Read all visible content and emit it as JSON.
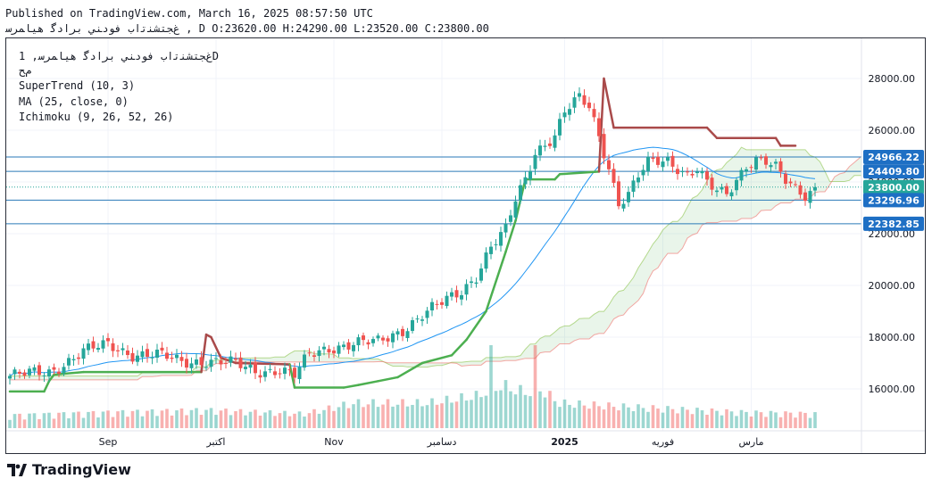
{
  "header": {
    "published": "Published on TradingView.com, March 16, 2025 08:57:50 UTC",
    "symbol_line": "ﻍﺠﺘﺸﻨﺗﺍﺏ ﻓﻮﺩﻨﻲ ﺑﺮﺍﺩﮔ ﻫﻴﺎﻤﺮﺳ , D O:23620.00 H:24290.00 L:23520.00 C:23800.00"
  },
  "legend": {
    "title": "ﻍﺠﺘﺸﻨﺗﺍﺏ ﻓﻮﺩﻨﻲ ﺑﺮﺍﺩﮔ ﻫﻴﺎﻤﺮﺳ, 1D",
    "subtitle": "ﻡﺢ",
    "indicators": [
      "SuperTrend (10, 3)",
      "MA (25, close, 0)",
      "Ichimoku (9, 26, 52, 26)"
    ]
  },
  "footer": {
    "brand": "TradingView"
  },
  "colors": {
    "up": "#26a69a",
    "down": "#ef5350",
    "supertrend_up": "#4caf50",
    "supertrend_down": "#a94a4a",
    "ma": "#2196f3",
    "hline": "#2a7ab8",
    "badge": "#1e6fc4"
  },
  "chart_data": {
    "type": "candlestick",
    "y_axis": {
      "ticks": [
        16000,
        18000,
        20000,
        22000,
        24000,
        26000,
        28000
      ],
      "tick_labels": [
        "16000.00",
        "18000.00",
        "20000.00",
        "22000.00",
        "24000.00",
        "26000.00",
        "28000.00"
      ],
      "range": [
        15400,
        28600
      ]
    },
    "x_axis": {
      "labels": [
        {
          "bar": 20,
          "text": "Sep"
        },
        {
          "bar": 42,
          "text": "اکتبر"
        },
        {
          "bar": 66,
          "text": "Nov"
        },
        {
          "bar": 88,
          "text": "دسامبر"
        },
        {
          "bar": 113,
          "text": "2025"
        },
        {
          "bar": 133,
          "text": "فوریه"
        },
        {
          "bar": 151,
          "text": "مارس"
        }
      ],
      "bars": 165
    },
    "hlines": [
      24966.22,
      24409.8,
      23296.96,
      22382.85
    ],
    "price_labels": [
      {
        "value": 24966.22,
        "text": "24966.22",
        "style": "outline"
      },
      {
        "value": 24409.8,
        "text": "24409.80",
        "style": "outline"
      },
      {
        "value": 23800,
        "text": "23800.00",
        "style": "green"
      },
      {
        "value": 23296.96,
        "text": "23296.96",
        "style": "outline"
      },
      {
        "value": 22382.85,
        "text": "22382.85",
        "style": "outline"
      }
    ],
    "last_close": 23800,
    "keypoints": [
      [
        0,
        16500
      ],
      [
        8,
        16650
      ],
      [
        15,
        17450
      ],
      [
        20,
        17700
      ],
      [
        25,
        17350
      ],
      [
        30,
        17300
      ],
      [
        35,
        17050
      ],
      [
        40,
        17100
      ],
      [
        46,
        16950
      ],
      [
        50,
        16700
      ],
      [
        55,
        16750
      ],
      [
        58,
        16500
      ],
      [
        61,
        17300
      ],
      [
        65,
        17600
      ],
      [
        70,
        17750
      ],
      [
        75,
        17800
      ],
      [
        80,
        18300
      ],
      [
        84,
        18850
      ],
      [
        88,
        19300
      ],
      [
        92,
        19800
      ],
      [
        95,
        20400
      ],
      [
        98,
        21500
      ],
      [
        101,
        22100
      ],
      [
        103,
        23300
      ],
      [
        105,
        24100
      ],
      [
        107,
        25200
      ],
      [
        109,
        25500
      ],
      [
        111,
        25800
      ],
      [
        113,
        26700
      ],
      [
        116,
        27200
      ],
      [
        118,
        26900
      ],
      [
        120,
        25800
      ],
      [
        122,
        24600
      ],
      [
        124,
        23200
      ],
      [
        126,
        23500
      ],
      [
        128,
        24200
      ],
      [
        130,
        24700
      ],
      [
        132,
        24800
      ],
      [
        134,
        24850
      ],
      [
        136,
        24600
      ],
      [
        138,
        24300
      ],
      [
        140,
        24500
      ],
      [
        142,
        23900
      ],
      [
        144,
        23600
      ],
      [
        146,
        23500
      ],
      [
        148,
        24100
      ],
      [
        150,
        24700
      ],
      [
        152,
        24900
      ],
      [
        154,
        24800
      ],
      [
        156,
        24500
      ],
      [
        158,
        24000
      ],
      [
        160,
        23700
      ],
      [
        162,
        23500
      ],
      [
        164,
        23800
      ]
    ],
    "supertrend_keypoints": [
      [
        0,
        15900,
        "up"
      ],
      [
        7,
        15900,
        "up"
      ],
      [
        8,
        16300,
        "up"
      ],
      [
        9,
        16550,
        "up"
      ],
      [
        15,
        16650,
        "up"
      ],
      [
        39,
        16650,
        "up"
      ],
      [
        40,
        18100,
        "down"
      ],
      [
        41,
        18000,
        "down"
      ],
      [
        43,
        17200,
        "down"
      ],
      [
        46,
        17000,
        "down"
      ],
      [
        57,
        16950,
        "down"
      ],
      [
        58,
        16050,
        "up"
      ],
      [
        68,
        16050,
        "up"
      ],
      [
        71,
        16150,
        "up"
      ],
      [
        75,
        16300,
        "up"
      ],
      [
        79,
        16450,
        "up"
      ],
      [
        84,
        17000,
        "up"
      ],
      [
        90,
        17300,
        "up"
      ],
      [
        93,
        17900,
        "up"
      ],
      [
        97,
        19000,
        "up"
      ],
      [
        101,
        21300,
        "up"
      ],
      [
        103,
        22500,
        "up"
      ],
      [
        105,
        24100,
        "up"
      ],
      [
        111,
        24100,
        "up"
      ],
      [
        112,
        24300,
        "up"
      ],
      [
        120,
        24400,
        "up"
      ],
      [
        121,
        28000,
        "down"
      ],
      [
        123,
        26100,
        "down"
      ],
      [
        142,
        26100,
        "down"
      ],
      [
        144,
        25700,
        "down"
      ],
      [
        156,
        25700,
        "down"
      ],
      [
        157,
        25400,
        "down"
      ],
      [
        160,
        25400,
        "down"
      ]
    ],
    "volume_keypoints": [
      [
        0,
        0.18
      ],
      [
        20,
        0.22
      ],
      [
        40,
        0.25
      ],
      [
        60,
        0.2
      ],
      [
        70,
        0.35
      ],
      [
        85,
        0.35
      ],
      [
        95,
        0.45
      ],
      [
        100,
        0.6
      ],
      [
        105,
        0.5
      ],
      [
        108,
        0.55
      ],
      [
        112,
        0.35
      ],
      [
        125,
        0.3
      ],
      [
        140,
        0.25
      ],
      [
        150,
        0.22
      ],
      [
        164,
        0.2
      ]
    ],
    "volume_spikes": [
      {
        "bar": 98,
        "ratio": 1.0,
        "dir": "up"
      },
      {
        "bar": 107,
        "ratio": 1.0,
        "dir": "down"
      }
    ]
  }
}
